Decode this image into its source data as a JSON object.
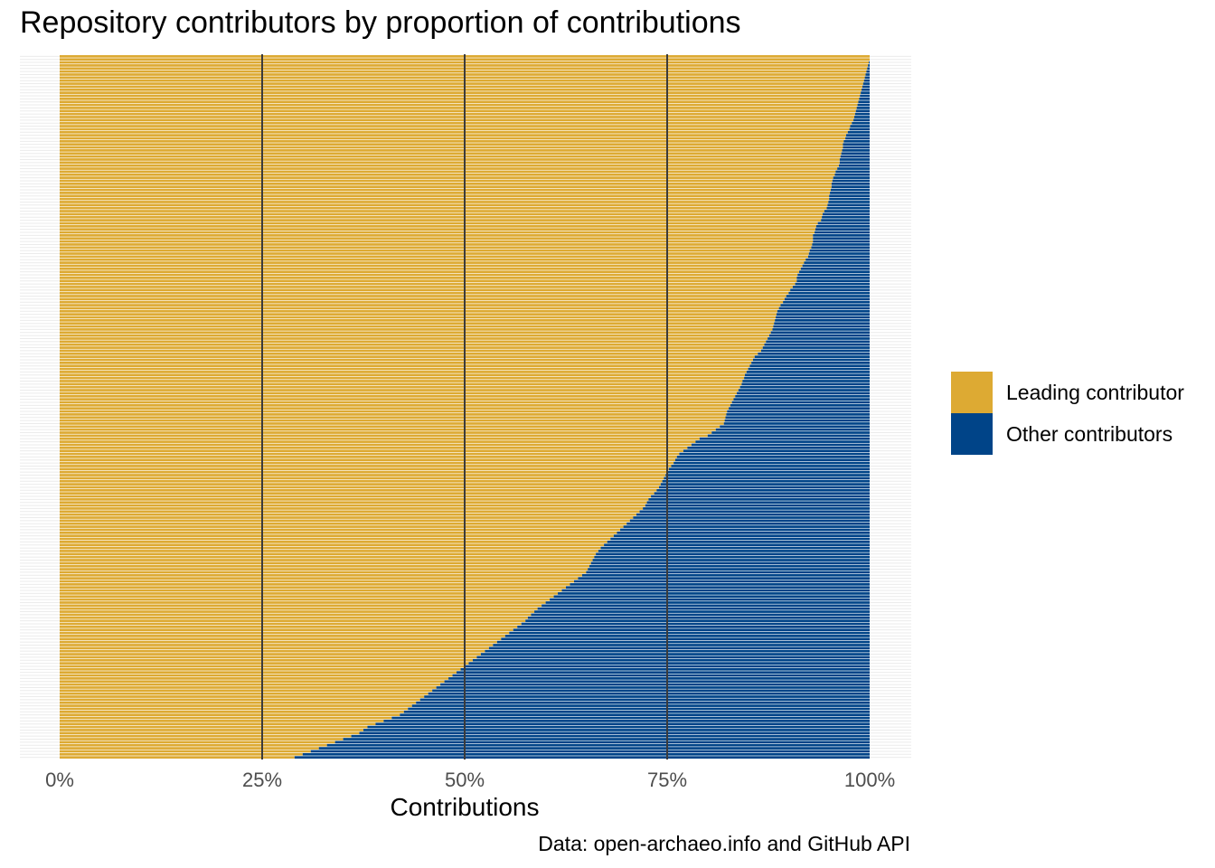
{
  "title": "Repository contributors by proportion of contributions",
  "caption": "Data: open-archaeo.info and GitHub API",
  "colors": {
    "leading": "#DDAA33",
    "other": "#004488",
    "grid": "#ebebeb",
    "vline": "#3b3b3b"
  },
  "legend": [
    {
      "label": "Leading contributor",
      "color": "#DDAA33"
    },
    {
      "label": "Other contributors",
      "color": "#004488"
    }
  ],
  "chart_data": {
    "type": "bar",
    "orientation": "horizontal",
    "stacked": true,
    "title": "Repository contributors by proportion of contributions",
    "xlabel": "Contributions",
    "ylabel": "",
    "xlim": [
      0,
      1
    ],
    "x_ticks": [
      0,
      0.25,
      0.5,
      0.75,
      1
    ],
    "x_tick_labels": [
      "0%",
      "25%",
      "50%",
      "75%",
      "100%"
    ],
    "reference_lines_x": [
      0.25,
      0.5,
      0.75
    ],
    "legend_position": "right",
    "series": [
      {
        "name": "Leading contributor",
        "field": "leading_share"
      },
      {
        "name": "Other contributors",
        "field": "other_share"
      }
    ],
    "leading_share": [
      1.0,
      1.0,
      0.999,
      0.998,
      0.997,
      0.996,
      0.995,
      0.994,
      0.993,
      0.992,
      0.991,
      0.99,
      0.989,
      0.988,
      0.987,
      0.986,
      0.985,
      0.984,
      0.983,
      0.982,
      0.981,
      0.98,
      0.978,
      0.976,
      0.975,
      0.973,
      0.971,
      0.97,
      0.968,
      0.967,
      0.967,
      0.966,
      0.965,
      0.964,
      0.963,
      0.963,
      0.962,
      0.96,
      0.958,
      0.957,
      0.955,
      0.954,
      0.953,
      0.953,
      0.952,
      0.951,
      0.95,
      0.95,
      0.949,
      0.948,
      0.947,
      0.944,
      0.942,
      0.941,
      0.94,
      0.936,
      0.934,
      0.933,
      0.932,
      0.93,
      0.93,
      0.93,
      0.929,
      0.928,
      0.926,
      0.925,
      0.924,
      0.921,
      0.919,
      0.917,
      0.915,
      0.913,
      0.911,
      0.91,
      0.91,
      0.908,
      0.905,
      0.902,
      0.9,
      0.897,
      0.895,
      0.893,
      0.89,
      0.888,
      0.886,
      0.885,
      0.884,
      0.883,
      0.882,
      0.881,
      0.88,
      0.878,
      0.876,
      0.874,
      0.872,
      0.87,
      0.868,
      0.866,
      0.862,
      0.858,
      0.856,
      0.854,
      0.852,
      0.85,
      0.848,
      0.846,
      0.845,
      0.843,
      0.842,
      0.84,
      0.838,
      0.836,
      0.834,
      0.832,
      0.83,
      0.828,
      0.826,
      0.824,
      0.823,
      0.822,
      0.821,
      0.82,
      0.815,
      0.81,
      0.805,
      0.8,
      0.79,
      0.785,
      0.78,
      0.775,
      0.77,
      0.765,
      0.762,
      0.76,
      0.758,
      0.755,
      0.752,
      0.75,
      0.748,
      0.746,
      0.744,
      0.742,
      0.74,
      0.737,
      0.734,
      0.73,
      0.727,
      0.725,
      0.723,
      0.72,
      0.716,
      0.712,
      0.708,
      0.704,
      0.7,
      0.696,
      0.692,
      0.688,
      0.684,
      0.68,
      0.676,
      0.672,
      0.668,
      0.665,
      0.662,
      0.66,
      0.658,
      0.656,
      0.654,
      0.652,
      0.65,
      0.645,
      0.64,
      0.635,
      0.63,
      0.625,
      0.62,
      0.615,
      0.61,
      0.605,
      0.6,
      0.595,
      0.59,
      0.586,
      0.582,
      0.578,
      0.575,
      0.57,
      0.565,
      0.56,
      0.555,
      0.55,
      0.545,
      0.54,
      0.535,
      0.53,
      0.525,
      0.52,
      0.515,
      0.51,
      0.505,
      0.5,
      0.495,
      0.49,
      0.485,
      0.48,
      0.475,
      0.47,
      0.465,
      0.46,
      0.455,
      0.45,
      0.445,
      0.44,
      0.435,
      0.43,
      0.425,
      0.42,
      0.41,
      0.4,
      0.39,
      0.38,
      0.375,
      0.37,
      0.36,
      0.35,
      0.34,
      0.33,
      0.32,
      0.31,
      0.3,
      0.29
    ]
  }
}
